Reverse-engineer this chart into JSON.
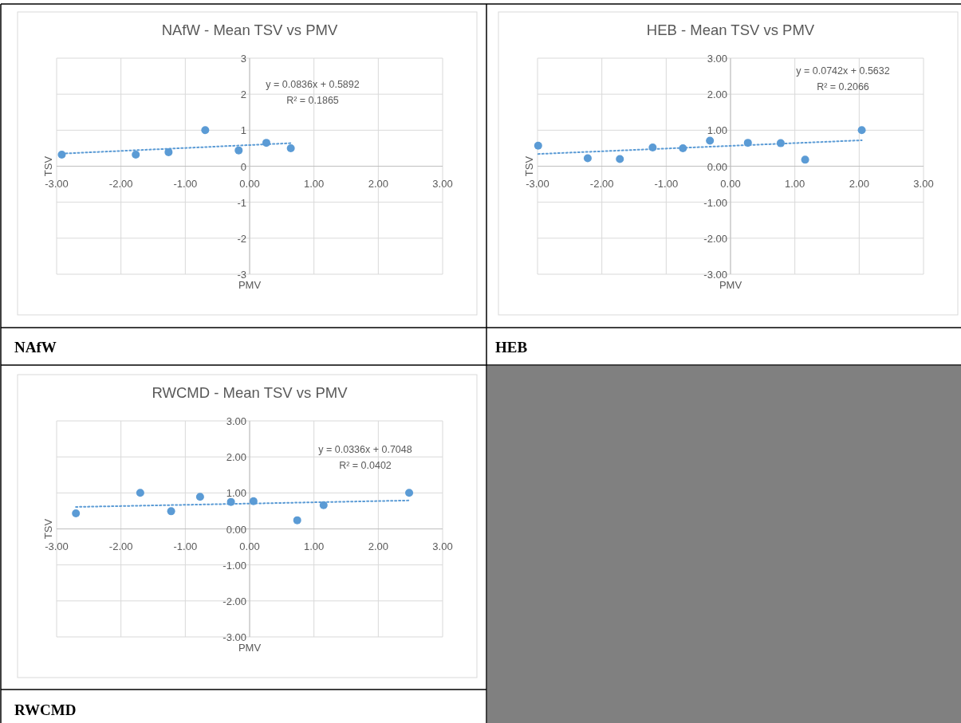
{
  "chart_data": [
    {
      "type": "scatter",
      "title": "NAfW - Mean TSV vs PMV",
      "xlabel": "PMV",
      "ylabel": "TSV",
      "xlim": [
        -3,
        3
      ],
      "xticks": [
        {
          "value": -3,
          "label": "-3.00"
        },
        {
          "value": -2,
          "label": "-2.00"
        },
        {
          "value": -1,
          "label": "-1.00"
        },
        {
          "value": 0,
          "label": "0.00"
        },
        {
          "value": 1,
          "label": "1.00"
        },
        {
          "value": 2,
          "label": "2.00"
        },
        {
          "value": 3,
          "label": "3.00"
        }
      ],
      "ylim": [
        -3,
        3
      ],
      "yticks": [
        -3,
        -2,
        -1,
        0,
        1,
        2,
        3
      ],
      "grid": true,
      "series": [
        {
          "marker": "circle",
          "color": "#5b9bd5",
          "x": [
            -2.92,
            -1.77,
            -1.26,
            -0.69,
            -0.17,
            0.26,
            0.64
          ],
          "values": [
            0.32,
            0.32,
            0.39,
            1.0,
            0.44,
            0.65,
            0.5
          ]
        },
        {
          "type": "line",
          "color": "#5b9bd5",
          "line_style": "dotted",
          "x": [
            -2.92,
            0.64
          ],
          "values": [
            0.35,
            0.64
          ]
        }
      ],
      "annotations": [
        "y = 0.0836x + 0.5892",
        "R² = 0.1865",
        "NAfW"
      ]
    },
    {
      "type": "scatter",
      "title": "HEB - Mean TSV vs PMV",
      "xlabel": "PMV",
      "ylabel": "TSV",
      "xlim": [
        -3,
        3
      ],
      "xticks": [
        {
          "value": -3,
          "label": "-3.00"
        },
        {
          "value": -2,
          "label": "-2.00"
        },
        {
          "value": -1,
          "label": "-1.00"
        },
        {
          "value": 0,
          "label": "0.00"
        },
        {
          "value": 1,
          "label": "1.00"
        },
        {
          "value": 2,
          "label": "2.00"
        },
        {
          "value": 3,
          "label": "3.00"
        }
      ],
      "ylim": [
        -3,
        3
      ],
      "yticks": [
        {
          "value": -3,
          "label": "-3.00"
        },
        {
          "value": -2,
          "label": "-2.00"
        },
        {
          "value": -1,
          "label": "-1.00"
        },
        {
          "value": 0,
          "label": "0.00"
        },
        {
          "value": 1,
          "label": "1.00"
        },
        {
          "value": 2,
          "label": "2.00"
        },
        {
          "value": 3,
          "label": "3.00"
        }
      ],
      "grid": true,
      "series": [
        {
          "marker": "circle",
          "color": "#5b9bd5",
          "x": [
            -2.99,
            -2.22,
            -1.72,
            -1.21,
            -0.74,
            -0.32,
            0.27,
            0.78,
            1.16,
            2.04
          ],
          "values": [
            0.57,
            0.22,
            0.2,
            0.52,
            0.5,
            0.71,
            0.65,
            0.64,
            0.18,
            1.0
          ]
        },
        {
          "type": "line",
          "color": "#5b9bd5",
          "line_style": "dotted",
          "x": [
            -2.99,
            2.04
          ],
          "values": [
            0.34,
            0.72
          ]
        }
      ],
      "annotations": [
        "y = 0.0742x + 0.5632",
        "R² = 0.2066",
        "HEB"
      ]
    },
    {
      "type": "scatter",
      "title": "RWCMD - Mean TSV vs PMV",
      "xlabel": "PMV",
      "ylabel": "TSV",
      "xlim": [
        -3,
        3
      ],
      "xticks": [
        {
          "value": -3,
          "label": "-3.00"
        },
        {
          "value": -2,
          "label": "-2.00"
        },
        {
          "value": -1,
          "label": "-1.00"
        },
        {
          "value": 0,
          "label": "0.00"
        },
        {
          "value": 1,
          "label": "1.00"
        },
        {
          "value": 2,
          "label": "2.00"
        },
        {
          "value": 3,
          "label": "3.00"
        }
      ],
      "ylim": [
        -3,
        3
      ],
      "yticks": [
        {
          "value": -3,
          "label": "-3.00"
        },
        {
          "value": -2,
          "label": "-2.00"
        },
        {
          "value": -1,
          "label": "-1.00"
        },
        {
          "value": 0,
          "label": "0.00"
        },
        {
          "value": 1,
          "label": "1.00"
        },
        {
          "value": 2,
          "label": "2.00"
        },
        {
          "value": 3,
          "label": "3.00"
        }
      ],
      "grid": true,
      "series": [
        {
          "marker": "circle",
          "color": "#5b9bd5",
          "x": [
            -2.7,
            -1.7,
            -1.22,
            -0.77,
            -0.29,
            0.06,
            0.74,
            1.15,
            2.48
          ],
          "values": [
            0.43,
            1.0,
            0.49,
            0.89,
            0.75,
            0.77,
            0.24,
            0.66,
            1.0
          ]
        },
        {
          "type": "line",
          "color": "#5b9bd5",
          "line_style": "dotted",
          "x": [
            -2.7,
            2.48
          ],
          "values": [
            0.61,
            0.79
          ]
        }
      ],
      "annotations": [
        "y = 0.0336x + 0.7048",
        "R² = 0.0402",
        "RWCMD"
      ]
    }
  ]
}
